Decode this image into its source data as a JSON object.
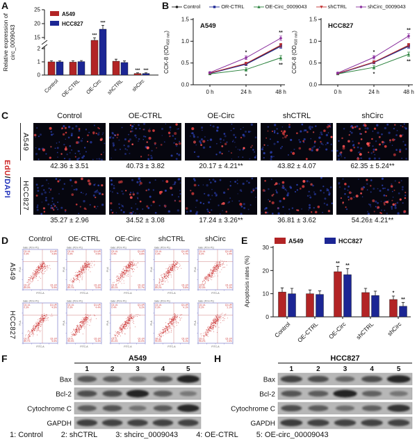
{
  "panel_labels": {
    "A": "A",
    "B": "B",
    "C": "C",
    "D": "D",
    "E": "E",
    "F": "F",
    "H": "H"
  },
  "panelA": {
    "chart_data": {
      "type": "bar",
      "ylabel": "Relative expression of circ_0009043",
      "categories": [
        "Control",
        "OE-CTRL",
        "OE-Circ",
        "shCTRL",
        "shCirc"
      ],
      "yticks_lower": [
        0,
        1,
        2
      ],
      "yticks_upper": [
        15,
        20,
        25
      ],
      "axis_break": true,
      "series": [
        {
          "name": "A549",
          "color": "#b22425",
          "values": [
            1.0,
            0.98,
            14.0,
            1.05,
            0.12
          ],
          "errors": [
            0.08,
            0.1,
            0.9,
            0.15,
            0.05
          ],
          "sig": [
            "",
            "",
            "***",
            "",
            "***"
          ]
        },
        {
          "name": "HCC827",
          "color": "#1c2694",
          "values": [
            1.0,
            1.02,
            18.0,
            0.95,
            0.12
          ],
          "errors": [
            0.07,
            0.08,
            1.4,
            0.12,
            0.05
          ],
          "sig": [
            "",
            "",
            "***",
            "",
            "***"
          ]
        }
      ]
    }
  },
  "panelB": {
    "legend": [
      {
        "name": "Control",
        "color": "#1a1a1a",
        "marker": "circle"
      },
      {
        "name": "OR-CTRL",
        "color": "#1c2694",
        "marker": "square"
      },
      {
        "name": "OE-Circ_0009043",
        "color": "#27803a",
        "marker": "triangle"
      },
      {
        "name": "shCTRL",
        "color": "#c23030",
        "marker": "tridown"
      },
      {
        "name": "shCirc_0009043",
        "color": "#8a2f9e",
        "marker": "diamond"
      }
    ],
    "charts": [
      {
        "title": "A549",
        "ylabel": "CCK-8 (OD450 nm)",
        "x": [
          "0 h",
          "24 h",
          "48 h"
        ],
        "yticks": [
          0,
          0.5,
          1,
          1.5
        ],
        "series": [
          {
            "name": "Control",
            "color": "#1a1a1a",
            "marker": "circle",
            "values": [
              0.27,
              0.48,
              0.9
            ],
            "errors": [
              0.02,
              0.03,
              0.04
            ],
            "sig": [
              "",
              "",
              ""
            ],
            "sig_side": "above"
          },
          {
            "name": "OR-CTRL",
            "color": "#1c2694",
            "marker": "square",
            "values": [
              0.26,
              0.47,
              0.88
            ],
            "errors": [
              0.02,
              0.03,
              0.04
            ],
            "sig": [
              "",
              "",
              ""
            ],
            "sig_side": "above"
          },
          {
            "name": "OE-Circ_0009043",
            "color": "#27803a",
            "marker": "triangle",
            "values": [
              0.25,
              0.35,
              0.62
            ],
            "errors": [
              0.02,
              0.04,
              0.05
            ],
            "sig": [
              "",
              "*",
              "**"
            ],
            "sig_side": "below"
          },
          {
            "name": "shCTRL",
            "color": "#c23030",
            "marker": "tridown",
            "values": [
              0.27,
              0.49,
              0.91
            ],
            "errors": [
              0.02,
              0.03,
              0.04
            ],
            "sig": [
              "",
              "",
              ""
            ],
            "sig_side": "above"
          },
          {
            "name": "shCirc_0009043",
            "color": "#8a2f9e",
            "marker": "diamond",
            "values": [
              0.28,
              0.62,
              1.07
            ],
            "errors": [
              0.02,
              0.04,
              0.05
            ],
            "sig": [
              "",
              "*",
              "**"
            ],
            "sig_side": "above"
          }
        ]
      },
      {
        "title": "HCC827",
        "ylabel": "CCK-8 (OD450 nm)",
        "x": [
          "0 h",
          "24 h",
          "48 h"
        ],
        "yticks": [
          0,
          0.5,
          1,
          1.5
        ],
        "series": [
          {
            "name": "Control",
            "color": "#1a1a1a",
            "marker": "circle",
            "values": [
              0.26,
              0.52,
              0.9
            ],
            "errors": [
              0.02,
              0.03,
              0.04
            ],
            "sig": [
              "",
              "",
              ""
            ],
            "sig_side": "above"
          },
          {
            "name": "OR-CTRL",
            "color": "#1c2694",
            "marker": "square",
            "values": [
              0.25,
              0.51,
              0.88
            ],
            "errors": [
              0.02,
              0.03,
              0.04
            ],
            "sig": [
              "",
              "",
              ""
            ],
            "sig_side": "above"
          },
          {
            "name": "OE-Circ_0009043",
            "color": "#27803a",
            "marker": "triangle",
            "values": [
              0.25,
              0.4,
              0.7
            ],
            "errors": [
              0.02,
              0.04,
              0.05
            ],
            "sig": [
              "",
              "*",
              "**"
            ],
            "sig_side": "below"
          },
          {
            "name": "shCTRL",
            "color": "#c23030",
            "marker": "tridown",
            "values": [
              0.26,
              0.52,
              0.91
            ],
            "errors": [
              0.02,
              0.03,
              0.04
            ],
            "sig": [
              "",
              "",
              ""
            ],
            "sig_side": "above"
          },
          {
            "name": "shCirc_0009043",
            "color": "#8a2f9e",
            "marker": "diamond",
            "values": [
              0.27,
              0.63,
              1.12
            ],
            "errors": [
              0.02,
              0.04,
              0.05
            ],
            "sig": [
              "",
              "*",
              "**"
            ],
            "sig_side": "above"
          }
        ]
      }
    ]
  },
  "panelC": {
    "col_headers": [
      "Control",
      "OE-CTRL",
      "OE-Circ",
      "shCTRL",
      "shCirc"
    ],
    "stain_labels": {
      "red": "EdU",
      "sep": "/",
      "blue": "DAPI"
    },
    "rows": [
      {
        "cell_line": "A549",
        "values": [
          "42.36 ± 3.51",
          "40.73 ± 3.82",
          "20.17 ± 4.21**",
          "43.82 ± 4.07",
          "62.35 ± 5.24**"
        ],
        "edu_positive": [
          42,
          41,
          20,
          44,
          62
        ]
      },
      {
        "cell_line": "HCC827",
        "values": [
          "35.27 ± 2.96",
          "34.52 ± 3.08",
          "17.24 ± 3.26**",
          "36.81 ± 3.62",
          "54.26± 4.21**"
        ],
        "edu_positive": [
          35,
          35,
          17,
          37,
          54
        ]
      }
    ]
  },
  "panelD": {
    "col_headers": [
      "Control",
      "OE-CTRL",
      "OE-Circ",
      "shCTRL",
      "shCirc"
    ],
    "plot_header": "Gate: (P2 in P1)",
    "quad_labels": [
      "Q1-UL",
      "Q1-UR",
      "Q1-LL",
      "Q1-LR"
    ],
    "x_axis": "FITC-A",
    "y_axis": "PI-A",
    "rows": [
      {
        "cell_line": "A549",
        "quads": [
          {
            "ul": "0.3%",
            "ur": "4.8%",
            "ll": "89.0%",
            "lr": "5.9%"
          },
          {
            "ul": "0.3%",
            "ur": "4.5%",
            "ll": "89.7%",
            "lr": "5.5%"
          },
          {
            "ul": "0.4%",
            "ur": "8.8%",
            "ll": "80.1%",
            "lr": "10.7%"
          },
          {
            "ul": "0.3%",
            "ur": "4.7%",
            "ll": "89.2%",
            "lr": "5.8%"
          },
          {
            "ul": "0.2%",
            "ur": "3.4%",
            "ll": "92.3%",
            "lr": "4.1%"
          }
        ]
      },
      {
        "cell_line": "HCC827",
        "quads": [
          {
            "ul": "0.3%",
            "ur": "4.5%",
            "ll": "89.7%",
            "lr": "5.5%"
          },
          {
            "ul": "0.3%",
            "ur": "4.4%",
            "ll": "90.0%",
            "lr": "5.3%"
          },
          {
            "ul": "0.4%",
            "ur": "8.2%",
            "ll": "81.4%",
            "lr": "10.0%"
          },
          {
            "ul": "0.3%",
            "ur": "4.1%",
            "ll": "90.5%",
            "lr": "5.1%"
          },
          {
            "ul": "0.2%",
            "ur": "2.1%",
            "ll": "95.2%",
            "lr": "2.5%"
          }
        ]
      }
    ]
  },
  "panelE": {
    "chart_data": {
      "type": "bar",
      "ylabel": "Apoptosis rates (%)",
      "categories": [
        "Control",
        "OE-CTRL",
        "OE-Circ",
        "shCTRL",
        "shCirc"
      ],
      "yticks": [
        0,
        10,
        20,
        30
      ],
      "series": [
        {
          "name": "A549",
          "color": "#b22425",
          "values": [
            10.7,
            10.0,
            19.5,
            10.5,
            7.5
          ],
          "errors": [
            1.8,
            1.6,
            2.3,
            1.8,
            1.5
          ],
          "sig": [
            "",
            "",
            "**",
            "",
            "*"
          ]
        },
        {
          "name": "HCC827",
          "color": "#1c2694",
          "values": [
            10.0,
            9.7,
            18.2,
            9.2,
            4.6
          ],
          "errors": [
            2.3,
            1.5,
            2.6,
            1.9,
            1.6
          ],
          "sig": [
            "",
            "",
            "**",
            "",
            "**"
          ]
        }
      ]
    }
  },
  "panelF": {
    "title": "A549",
    "lanes": [
      "1",
      "2",
      "3",
      "4",
      "5"
    ],
    "proteins": [
      "Bax",
      "Bcl-2",
      "Cytochrome C",
      "GAPDH"
    ],
    "intensities": [
      [
        0.55,
        0.5,
        0.35,
        0.55,
        0.95
      ],
      [
        0.6,
        0.6,
        0.95,
        0.5,
        0.25
      ],
      [
        0.5,
        0.55,
        0.3,
        0.5,
        0.9
      ],
      [
        0.72,
        0.7,
        0.7,
        0.7,
        0.7
      ]
    ]
  },
  "panelH": {
    "title": "HCC827",
    "lanes": [
      "1",
      "2",
      "3",
      "4",
      "5"
    ],
    "proteins": [
      "Bax",
      "Bcl-2",
      "Cytochrome C",
      "GAPDH"
    ],
    "intensities": [
      [
        0.7,
        0.6,
        0.4,
        0.6,
        0.92
      ],
      [
        0.55,
        0.5,
        0.95,
        0.45,
        0.28
      ],
      [
        0.6,
        0.5,
        0.35,
        0.45,
        0.82
      ],
      [
        0.75,
        0.7,
        0.7,
        0.7,
        0.7
      ]
    ]
  },
  "footer": {
    "items": [
      "1: Control",
      "2: shCTRL",
      "3: shcirc_0009043",
      "4: OE-CTRL",
      "5: OE-circ_00009043"
    ]
  }
}
